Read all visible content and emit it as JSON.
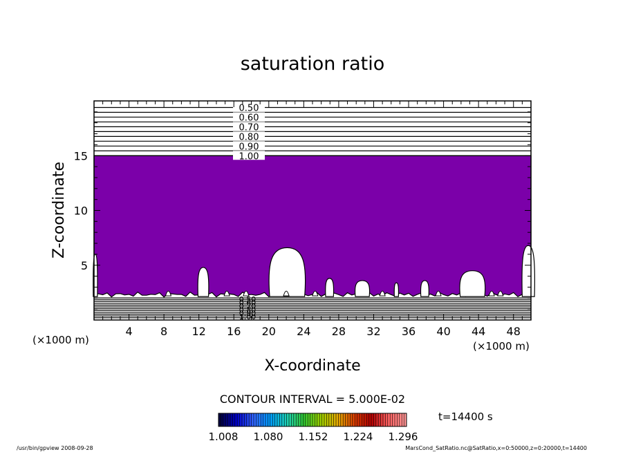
{
  "chart_data": {
    "type": "contour",
    "title": "saturation ratio",
    "xlabel": "X-coordinate",
    "ylabel": "Z-coordinate",
    "x_unit": "(×1000 m)",
    "z_unit": "(×1000 m)",
    "xlim": [
      0,
      50
    ],
    "ylim": [
      0,
      20
    ],
    "x_ticks": [
      4,
      8,
      12,
      16,
      20,
      24,
      28,
      32,
      36,
      40,
      44,
      48
    ],
    "y_ticks": [
      5,
      10,
      15
    ],
    "upper_contour_labels": [
      "0.50",
      "0.60",
      "0.70",
      "0.80",
      "0.90",
      "1.00"
    ],
    "upper_contour_levels": [
      0.5,
      0.55,
      0.6,
      0.65,
      0.7,
      0.75,
      0.8,
      0.85,
      0.9,
      0.95,
      1.0
    ],
    "lower_contour_labels": [
      "0.50",
      "0.60",
      "0.70",
      "0.80",
      "0.90",
      "1.00"
    ],
    "fill_color": "#7b00a9",
    "fill_region": {
      "z_top": 15.0,
      "z_bottom": 2.2
    },
    "clouds_x_z": [
      {
        "x": 0.0,
        "w": 0.3,
        "h": 6.0
      },
      {
        "x": 11.9,
        "w": 1.2,
        "h": 4.8
      },
      {
        "x": 20.1,
        "w": 4.0,
        "h": 6.6
      },
      {
        "x": 26.5,
        "w": 0.9,
        "h": 3.8
      },
      {
        "x": 29.9,
        "w": 1.6,
        "h": 3.6
      },
      {
        "x": 34.4,
        "w": 0.4,
        "h": 3.4
      },
      {
        "x": 37.4,
        "w": 0.9,
        "h": 3.6
      },
      {
        "x": 41.9,
        "w": 2.8,
        "h": 4.5
      },
      {
        "x": 49.0,
        "w": 1.4,
        "h": 6.8
      }
    ],
    "contour_interval": "CONTOUR INTERVAL = 5.000E-02",
    "colorbar": {
      "ticks": [
        "1.008",
        "1.080",
        "1.152",
        "1.224",
        "1.296"
      ],
      "colors": [
        "#00003c",
        "#0000c8",
        "#3264ff",
        "#00a0ff",
        "#1ed2b4",
        "#32c832",
        "#a0d200",
        "#e6aa00",
        "#dc3c00",
        "#b40000",
        "#ff6464",
        "#ff9696"
      ]
    },
    "time_label": "t=14400 s"
  },
  "footer": {
    "left": "/usr/bin/gpview   2008-09-28",
    "right": "MarsCond_SatRatio.nc@SatRatio,x=0:50000,z=0:20000,t=14400"
  }
}
